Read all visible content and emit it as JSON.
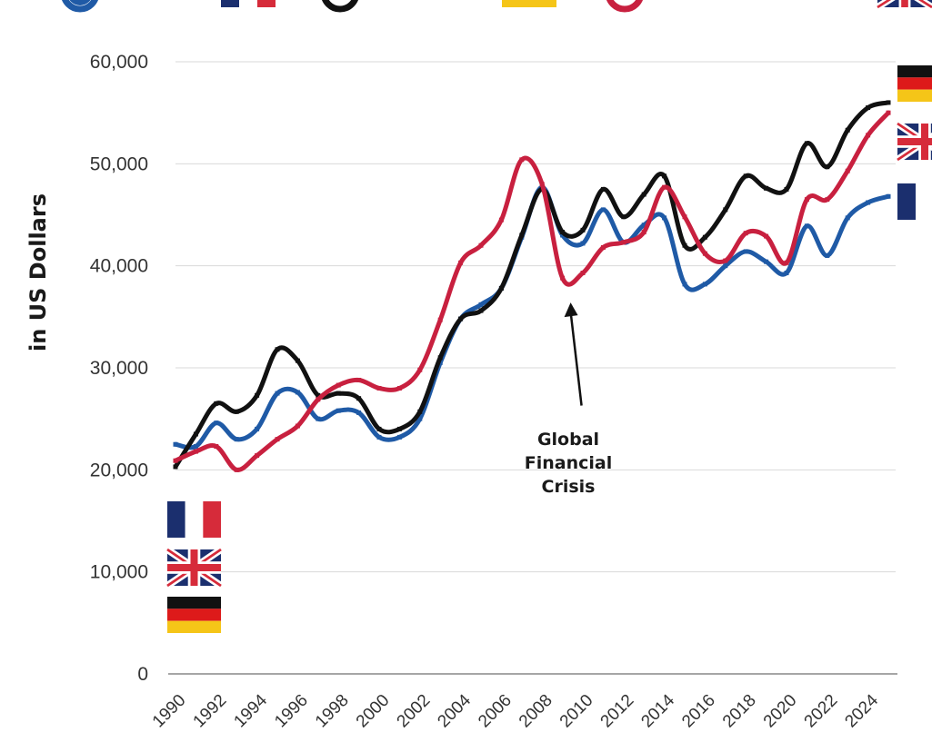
{
  "chart_data": {
    "type": "line",
    "title": "",
    "xlabel": "",
    "ylabel": "in US Dollars",
    "ylim": [
      0,
      60000
    ],
    "y_ticks": [
      0,
      10000,
      20000,
      30000,
      40000,
      50000,
      60000
    ],
    "y_tick_labels": [
      "0",
      "10,000",
      "20,000",
      "30,000",
      "40,000",
      "50,000",
      "60,000"
    ],
    "x_tick_labels": [
      "1990",
      "1992",
      "1994",
      "1996",
      "1998",
      "2000",
      "2002",
      "2004",
      "2006",
      "2008",
      "2010",
      "2012",
      "2014",
      "2016",
      "2018",
      "2020",
      "2022",
      "2024"
    ],
    "x": [
      1990,
      1991,
      1992,
      1993,
      1994,
      1995,
      1996,
      1997,
      1998,
      1999,
      2000,
      2001,
      2002,
      2003,
      2004,
      2005,
      2006,
      2007,
      2008,
      2009,
      2010,
      2011,
      2012,
      2013,
      2014,
      2015,
      2016,
      2017,
      2018,
      2019,
      2020,
      2021,
      2022,
      2023,
      2024,
      2025
    ],
    "grid": true,
    "legend_position": "top",
    "colors": {
      "france": "#1f5aa6",
      "germany": "#111111",
      "uk": "#c8203f",
      "grid": "#d9d9d9",
      "axis": "#888888"
    },
    "series": [
      {
        "name": "France",
        "flag": "france-flag",
        "color": "#1f5aa6",
        "values": [
          22500,
          22300,
          24600,
          23000,
          24000,
          27500,
          27600,
          25000,
          25800,
          25600,
          23200,
          23200,
          25000,
          30500,
          34800,
          36200,
          37800,
          42800,
          47700,
          43000,
          42200,
          45500,
          42300,
          44000,
          44700,
          38200,
          38200,
          40000,
          41400,
          40400,
          39300,
          43900,
          41000,
          44700,
          46200,
          46800
        ]
      },
      {
        "name": "Germany",
        "flag": "germany-flag",
        "color": "#111111",
        "values": [
          20300,
          23500,
          26500,
          25700,
          27300,
          31800,
          30700,
          27300,
          27500,
          27000,
          24000,
          24000,
          25700,
          31000,
          34800,
          35600,
          37800,
          43000,
          47500,
          43300,
          43500,
          47500,
          44800,
          47000,
          48800,
          42000,
          42800,
          45500,
          48800,
          47600,
          47500,
          52000,
          49700,
          53300,
          55500,
          56000
        ]
      },
      {
        "name": "United Kingdom",
        "flag": "uk-flag",
        "color": "#c8203f",
        "values": [
          20900,
          21800,
          22300,
          20000,
          21400,
          23000,
          24300,
          26900,
          28300,
          28800,
          28000,
          28000,
          29800,
          34700,
          40300,
          42000,
          44500,
          50400,
          48000,
          38800,
          39300,
          41800,
          42300,
          43300,
          47700,
          44800,
          41200,
          40500,
          43200,
          42900,
          40300,
          46500,
          46500,
          49300,
          52800,
          55000
        ]
      }
    ],
    "annotations": [
      {
        "name": "global-financial-crisis",
        "lines": [
          "Global",
          "Financial",
          "Crisis"
        ],
        "x": 2008.2,
        "y": 36000
      }
    ]
  }
}
